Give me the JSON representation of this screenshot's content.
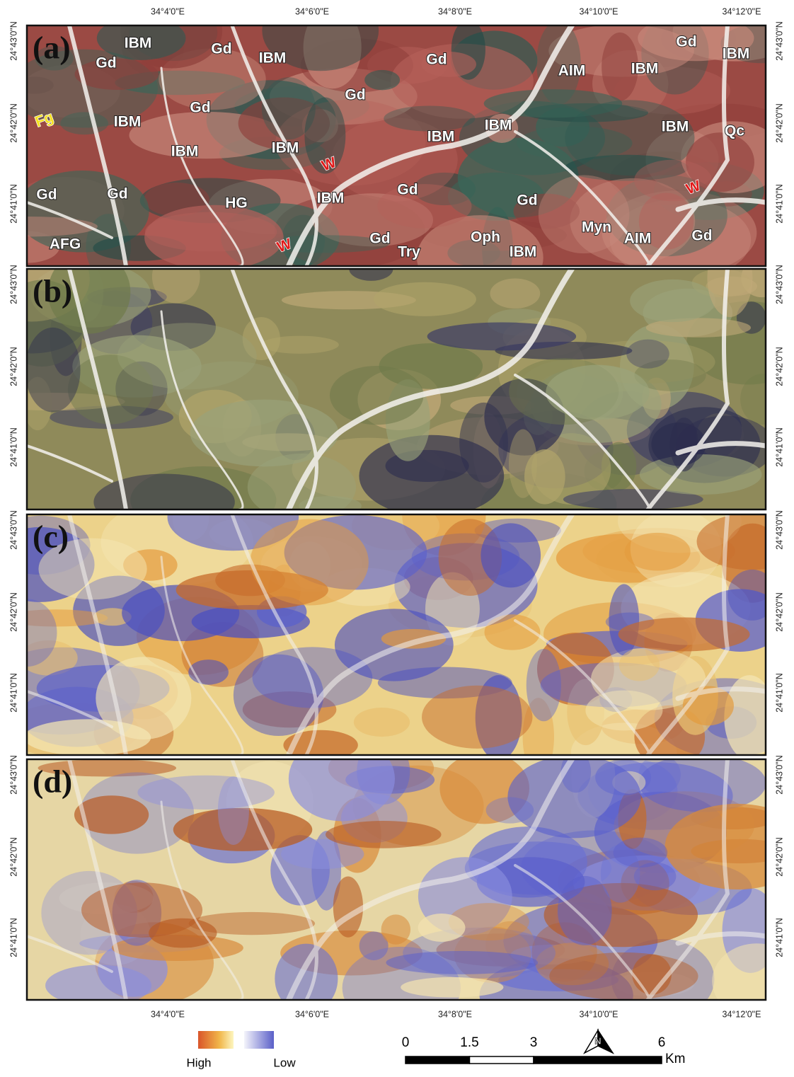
{
  "lon_labels": [
    "34°4'0\"E",
    "34°6'0\"E",
    "34°8'0\"E",
    "34°10'0\"E",
    "34°12'0\"E"
  ],
  "lat_labels": [
    "24°43'0\"N",
    "24°42'0\"N",
    "24°41'0\"N"
  ],
  "panels": [
    {
      "label": "(a)"
    },
    {
      "label": "(b)"
    },
    {
      "label": "(c)"
    },
    {
      "label": "(d)"
    }
  ],
  "panel_a_labels": [
    "IBM",
    "Gd",
    "Gd",
    "IBM",
    "Gd",
    "Gd",
    "IBM",
    "AIM",
    "IBM",
    "Gd",
    "Gd",
    "Fg",
    "IBM",
    "IBM",
    "IBM",
    "W",
    "IBM",
    "IBM",
    "IBM",
    "Qc",
    "Gd",
    "Gd",
    "HG",
    "IBM",
    "Gd",
    "Gd",
    "W",
    "Gd",
    "Myn",
    "AIM",
    "AFG",
    "W",
    "Gd",
    "Try",
    "Oph",
    "IBM"
  ],
  "legend": {
    "high": "High",
    "low": "Low"
  },
  "scale_bar": {
    "ticks": [
      0,
      1.5,
      3,
      6
    ],
    "unit": "Km"
  },
  "north": "N"
}
